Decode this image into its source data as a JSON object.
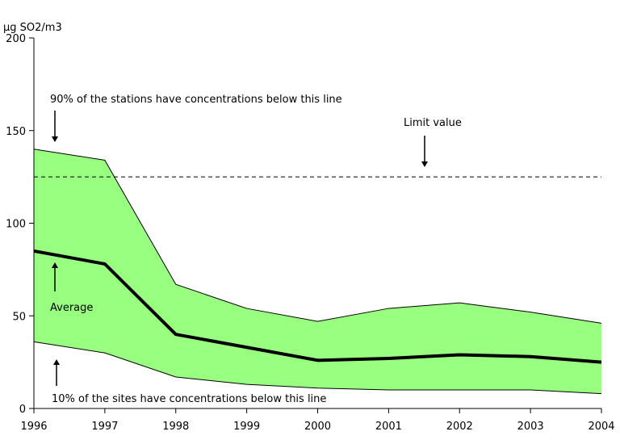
{
  "chart_data": {
    "type": "area",
    "ylabel": "µg SO2/m3",
    "x": [
      "1996",
      "1997",
      "1998",
      "1999",
      "2000",
      "2001",
      "2002",
      "2003",
      "2004"
    ],
    "ylim": [
      0,
      200
    ],
    "yticks": [
      "0",
      "50",
      "100",
      "150",
      "200"
    ],
    "grid": false,
    "band_color": "#99ff80",
    "series": [
      {
        "name": "90% of the stations have concentrations below this line",
        "values": [
          140,
          134,
          67,
          54,
          47,
          54,
          57,
          52,
          46
        ]
      },
      {
        "name": "Average",
        "values": [
          85,
          78,
          40,
          33,
          26,
          27,
          29,
          28,
          25
        ]
      },
      {
        "name": "10% of the sites have concentrations below this line",
        "values": [
          36,
          30,
          17,
          13,
          11,
          10,
          10,
          10,
          8
        ]
      }
    ],
    "limit_value": {
      "label": "Limit value",
      "value": 125,
      "x_start": "1996",
      "x_end": "2004"
    },
    "annotations": [
      {
        "text": "90% of the stations have concentrations below this line"
      },
      {
        "text": "Limit value"
      },
      {
        "text": "Average"
      },
      {
        "text": "10% of the sites have concentrations below this line"
      }
    ]
  }
}
